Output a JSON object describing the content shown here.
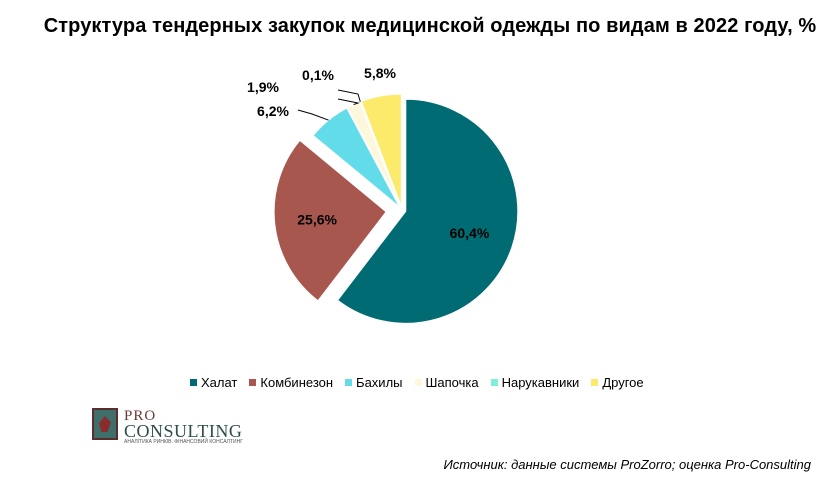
{
  "chart_data": {
    "type": "pie",
    "title": "Структура тендерных закупок медицинской одежды по видам в 2022 году, %",
    "categories": [
      "Халат",
      "Комбинезон",
      "Бахилы",
      "Шапочка",
      "Нарукавники",
      "Другое"
    ],
    "values": [
      60.4,
      25.6,
      6.2,
      1.9,
      0.1,
      5.8
    ],
    "data_labels": [
      "60,4%",
      "25,6%",
      "6,2%",
      "1,9%",
      "0,1%",
      "5,8%"
    ],
    "colors": [
      "#006b73",
      "#a8574f",
      "#62dce8",
      "#fdf7dc",
      "#7ff0d8",
      "#fcea6a"
    ],
    "legend_position": "bottom",
    "exploded": true
  },
  "logo": {
    "pro": "PRO",
    "consulting": "CONSULTING",
    "tagline": "АНАЛІТИКА РИНКІВ. ФІНАНСОВИЙ КОНСАЛТИНГ"
  },
  "source": "Источник: данные системы ProZorro; оценка Pro-Consulting"
}
